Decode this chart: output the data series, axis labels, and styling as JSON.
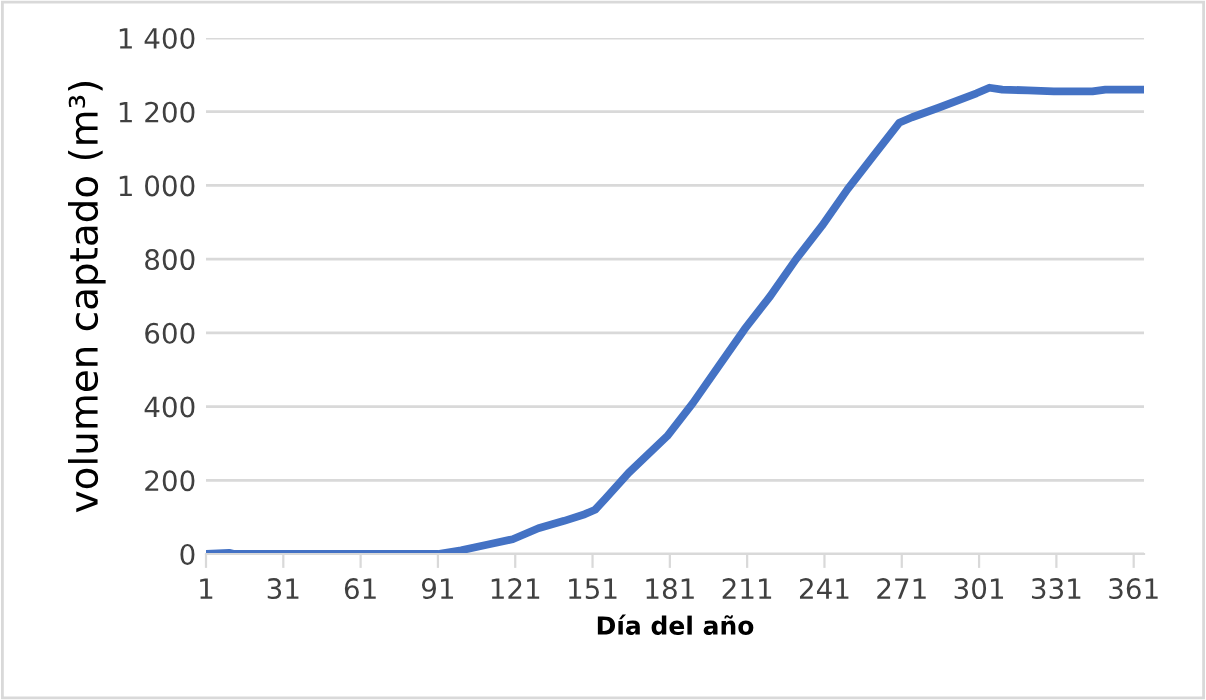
{
  "chart_data": {
    "type": "line",
    "xlabel": "Día del año",
    "ylabel": "volumen captado (m³)",
    "x": [
      1,
      10,
      12,
      91,
      100,
      110,
      120,
      125,
      130,
      140,
      148,
      152,
      156,
      165,
      180,
      190,
      200,
      210,
      220,
      230,
      240,
      250,
      260,
      270,
      275,
      285,
      300,
      305,
      310,
      320,
      330,
      345,
      350,
      365
    ],
    "series": [
      {
        "color": "#4472c4",
        "values": [
          0,
          3,
          0,
          0,
          10,
          25,
          40,
          55,
          70,
          90,
          108,
          120,
          150,
          220,
          320,
          410,
          510,
          610,
          700,
          800,
          890,
          990,
          1080,
          1170,
          1185,
          1210,
          1250,
          1265,
          1260,
          1258,
          1255,
          1255,
          1260,
          1260
        ]
      }
    ],
    "xlim": [
      1,
      365
    ],
    "xticks": [
      1,
      31,
      61,
      91,
      121,
      151,
      181,
      211,
      241,
      271,
      301,
      331,
      361
    ],
    "ylim": [
      0,
      1400
    ],
    "yticks": [
      0,
      200,
      400,
      600,
      800,
      {
        "value": 1000,
        "label": "1 000"
      },
      {
        "value": 1200,
        "label": "1 200"
      },
      {
        "value": 1400,
        "label": "1 400"
      }
    ],
    "grid": "y",
    "marker": "none",
    "line_style": "solid"
  }
}
